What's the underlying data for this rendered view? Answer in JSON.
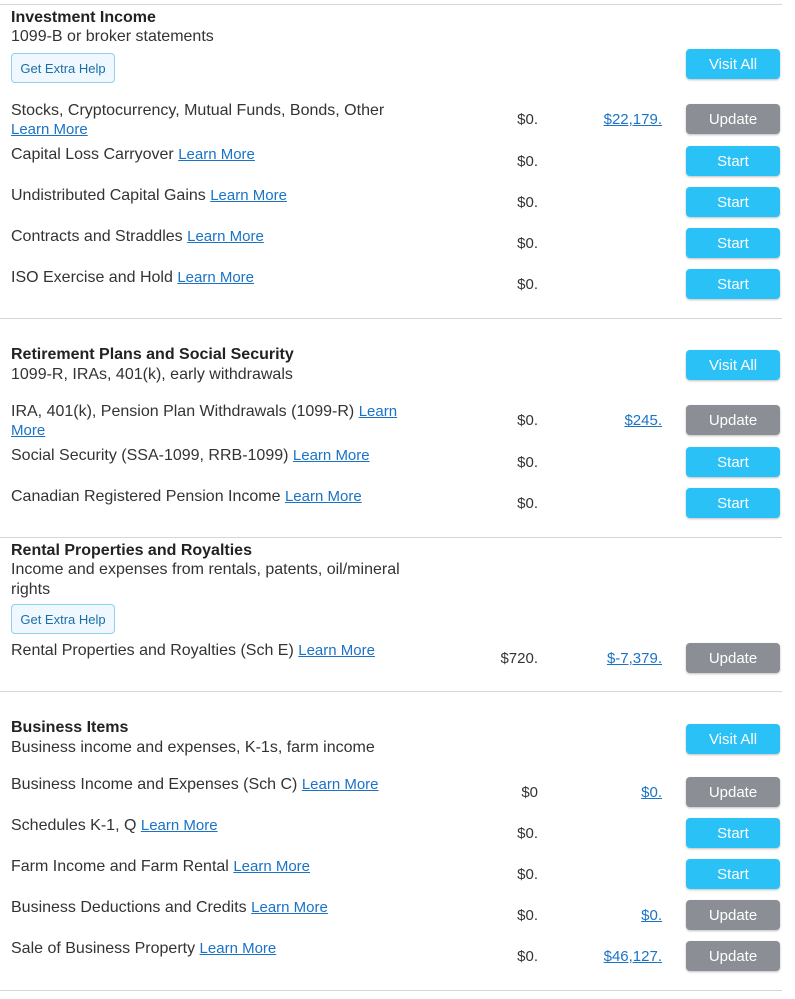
{
  "learn_more": "Learn More",
  "learn": "Learn",
  "more": "More",
  "colors": {
    "accent_button": "#2ac1f7",
    "update_button": "#8b8f95",
    "link": "#1a73c6"
  },
  "investment": {
    "title": "Investment Income",
    "subtitle": "1099-B or broker statements",
    "help": "Get Extra Help",
    "visit_all": "Visit All",
    "rows": [
      {
        "label": "Stocks, Cryptocurrency, Mutual Funds, Bonds, Other",
        "amount": "$0.",
        "link_amount": "$22,179.",
        "button": "Update"
      },
      {
        "label": "Capital Loss Carryover",
        "amount": "$0.",
        "button": "Start"
      },
      {
        "label": "Undistributed Capital Gains",
        "amount": "$0.",
        "button": "Start"
      },
      {
        "label": "Contracts and Straddles",
        "amount": "$0.",
        "button": "Start"
      },
      {
        "label": "ISO Exercise and Hold",
        "amount": "$0.",
        "button": "Start"
      }
    ]
  },
  "retirement": {
    "title": "Retirement Plans and Social Security",
    "subtitle": "1099-R, IRAs, 401(k), early withdrawals",
    "visit_all": "Visit All",
    "rows": [
      {
        "label": "IRA, 401(k), Pension Plan Withdrawals (1099-R)",
        "amount": "$0.",
        "link_amount": "$245.",
        "button": "Update"
      },
      {
        "label": "Social Security (SSA-1099, RRB-1099)",
        "amount": "$0.",
        "button": "Start"
      },
      {
        "label": "Canadian Registered Pension Income",
        "amount": "$0.",
        "button": "Start"
      }
    ]
  },
  "rental": {
    "title": "Rental Properties and Royalties",
    "subtitle_line1": "Income and expenses from rentals, patents, oil/mineral",
    "subtitle_line2": "rights",
    "help": "Get Extra Help",
    "rows": [
      {
        "label": "Rental Properties and Royalties (Sch E)",
        "amount": "$720.",
        "link_amount": "$-7,379.",
        "button": "Update"
      }
    ]
  },
  "business": {
    "title": "Business Items",
    "subtitle": "Business income and expenses, K-1s, farm income",
    "visit_all": "Visit All",
    "rows": [
      {
        "label": "Business Income and Expenses (Sch C)",
        "amount": "$0",
        "link_amount": "$0.",
        "button": "Update"
      },
      {
        "label": "Schedules K-1, Q",
        "amount": "$0.",
        "button": "Start"
      },
      {
        "label": "Farm Income and Farm Rental",
        "amount": "$0.",
        "button": "Start"
      },
      {
        "label": "Business Deductions and Credits",
        "amount": "$0.",
        "link_amount": "$0.",
        "button": "Update"
      },
      {
        "label": "Sale of Business Property",
        "amount": "$0.",
        "link_amount": "$46,127.",
        "button": "Update"
      }
    ]
  }
}
